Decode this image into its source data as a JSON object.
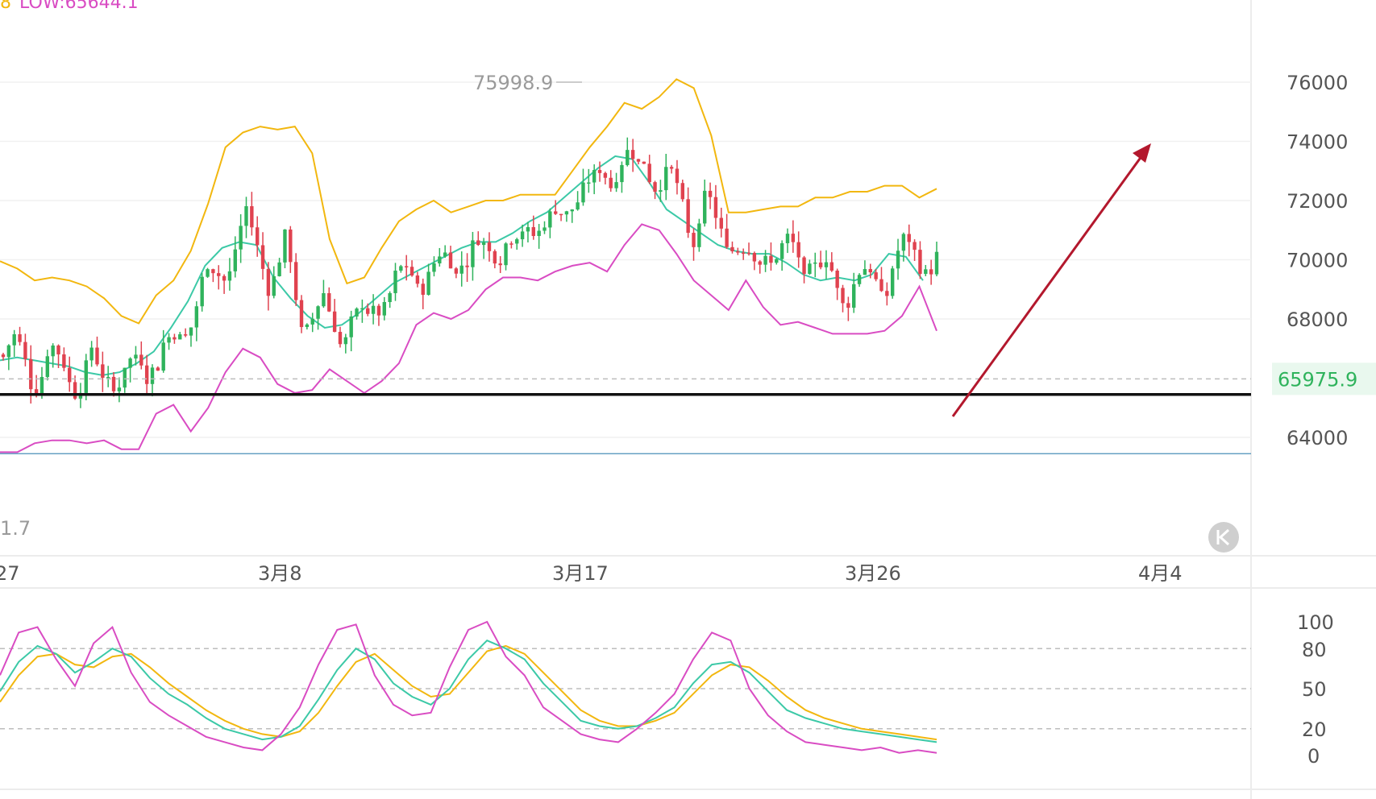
{
  "legend": {
    "low_text": "LOW:65644.1",
    "prefix_text": "8"
  },
  "chart_data": [
    {
      "type": "candlestick",
      "price_axis": {
        "ticks": [
          "76000",
          "74000",
          "72000",
          "70000",
          "68000",
          "64000"
        ],
        "ylim": [
          61600,
          78800
        ]
      },
      "last_price": "65975.9",
      "high_annotation": "75998.9",
      "low_annotation": "1.7",
      "support_level": 65450,
      "low_horizontal_line": 63450,
      "date_labels": [
        "27",
        "3月8",
        "3月17",
        "3月26",
        "4月4"
      ],
      "bollinger": {
        "upper": [
          69950,
          69700,
          69300,
          69400,
          69300,
          69100,
          68700,
          68100,
          67850,
          68800,
          69300,
          70300,
          71900,
          73800,
          74300,
          74500,
          74400,
          74500,
          73600,
          70700,
          69200,
          69400,
          70400,
          71300,
          71700,
          72000,
          71600,
          71800,
          72000,
          72000,
          72200,
          72200,
          72200,
          73000,
          73800,
          74500,
          75300,
          75100,
          75500,
          76100,
          75800,
          74200,
          71600,
          71600,
          71700,
          71800,
          71800,
          72100,
          72100,
          72300,
          72300,
          72500,
          72500,
          72100,
          72400
        ],
        "middle": [
          66600,
          66700,
          66600,
          66500,
          66400,
          66200,
          66100,
          66200,
          66500,
          66900,
          67700,
          68600,
          69800,
          70400,
          70600,
          70500,
          69400,
          68700,
          68100,
          67700,
          67800,
          68200,
          68700,
          69200,
          69500,
          69800,
          70100,
          70400,
          70600,
          70600,
          70900,
          71300,
          71600,
          72100,
          72600,
          73100,
          73500,
          73400,
          72600,
          71700,
          71300,
          70900,
          70500,
          70300,
          70200,
          70200,
          69900,
          69500,
          69300,
          69400,
          69300,
          69500,
          70200,
          70100,
          69300
        ],
        "lower": [
          63500,
          63500,
          63800,
          63900,
          63900,
          63800,
          63900,
          63600,
          63600,
          64800,
          65100,
          64200,
          65000,
          66200,
          67000,
          66700,
          65800,
          65500,
          65600,
          66300,
          65900,
          65500,
          65900,
          66500,
          67800,
          68200,
          68000,
          68300,
          69000,
          69400,
          69400,
          69300,
          69600,
          69800,
          69900,
          69600,
          70500,
          71200,
          71000,
          70200,
          69300,
          68800,
          68300,
          69300,
          68400,
          67800,
          67900,
          67700,
          67500,
          67500,
          67500,
          67600,
          68100,
          69100,
          67600
        ]
      },
      "oscillator": {
        "ticks": [
          "100",
          "80",
          "50",
          "20",
          "0"
        ],
        "k": [
          48,
          70,
          82,
          76,
          62,
          70,
          80,
          74,
          58,
          46,
          38,
          28,
          20,
          16,
          12,
          14,
          22,
          42,
          64,
          80,
          72,
          54,
          44,
          38,
          50,
          72,
          86,
          80,
          72,
          54,
          40,
          26,
          22,
          20,
          22,
          28,
          36,
          54,
          68,
          70,
          62,
          48,
          34,
          28,
          24,
          20,
          18,
          16,
          14,
          12,
          10
        ],
        "d": [
          40,
          60,
          74,
          76,
          68,
          66,
          74,
          76,
          66,
          54,
          44,
          34,
          26,
          20,
          16,
          14,
          18,
          32,
          52,
          70,
          76,
          64,
          52,
          44,
          46,
          62,
          78,
          82,
          76,
          62,
          48,
          34,
          26,
          22,
          22,
          26,
          32,
          46,
          60,
          68,
          66,
          56,
          44,
          34,
          28,
          24,
          20,
          18,
          16,
          14,
          12
        ],
        "j": [
          60,
          92,
          96,
          72,
          52,
          84,
          96,
          62,
          40,
          30,
          22,
          14,
          10,
          6,
          4,
          16,
          36,
          68,
          94,
          98,
          60,
          38,
          30,
          32,
          66,
          94,
          100,
          74,
          60,
          36,
          26,
          16,
          12,
          10,
          20,
          32,
          46,
          72,
          92,
          86,
          50,
          30,
          18,
          10,
          8,
          6,
          4,
          6,
          2,
          4,
          2
        ]
      },
      "colors": {
        "up": "#2fb35c",
        "down": "#e0424f",
        "upper_band": "#f2b70f",
        "middle_band": "#3cc9a7",
        "lower_band": "#d94cc3",
        "arrow": "#b3182d",
        "support": "#111111"
      }
    }
  ]
}
